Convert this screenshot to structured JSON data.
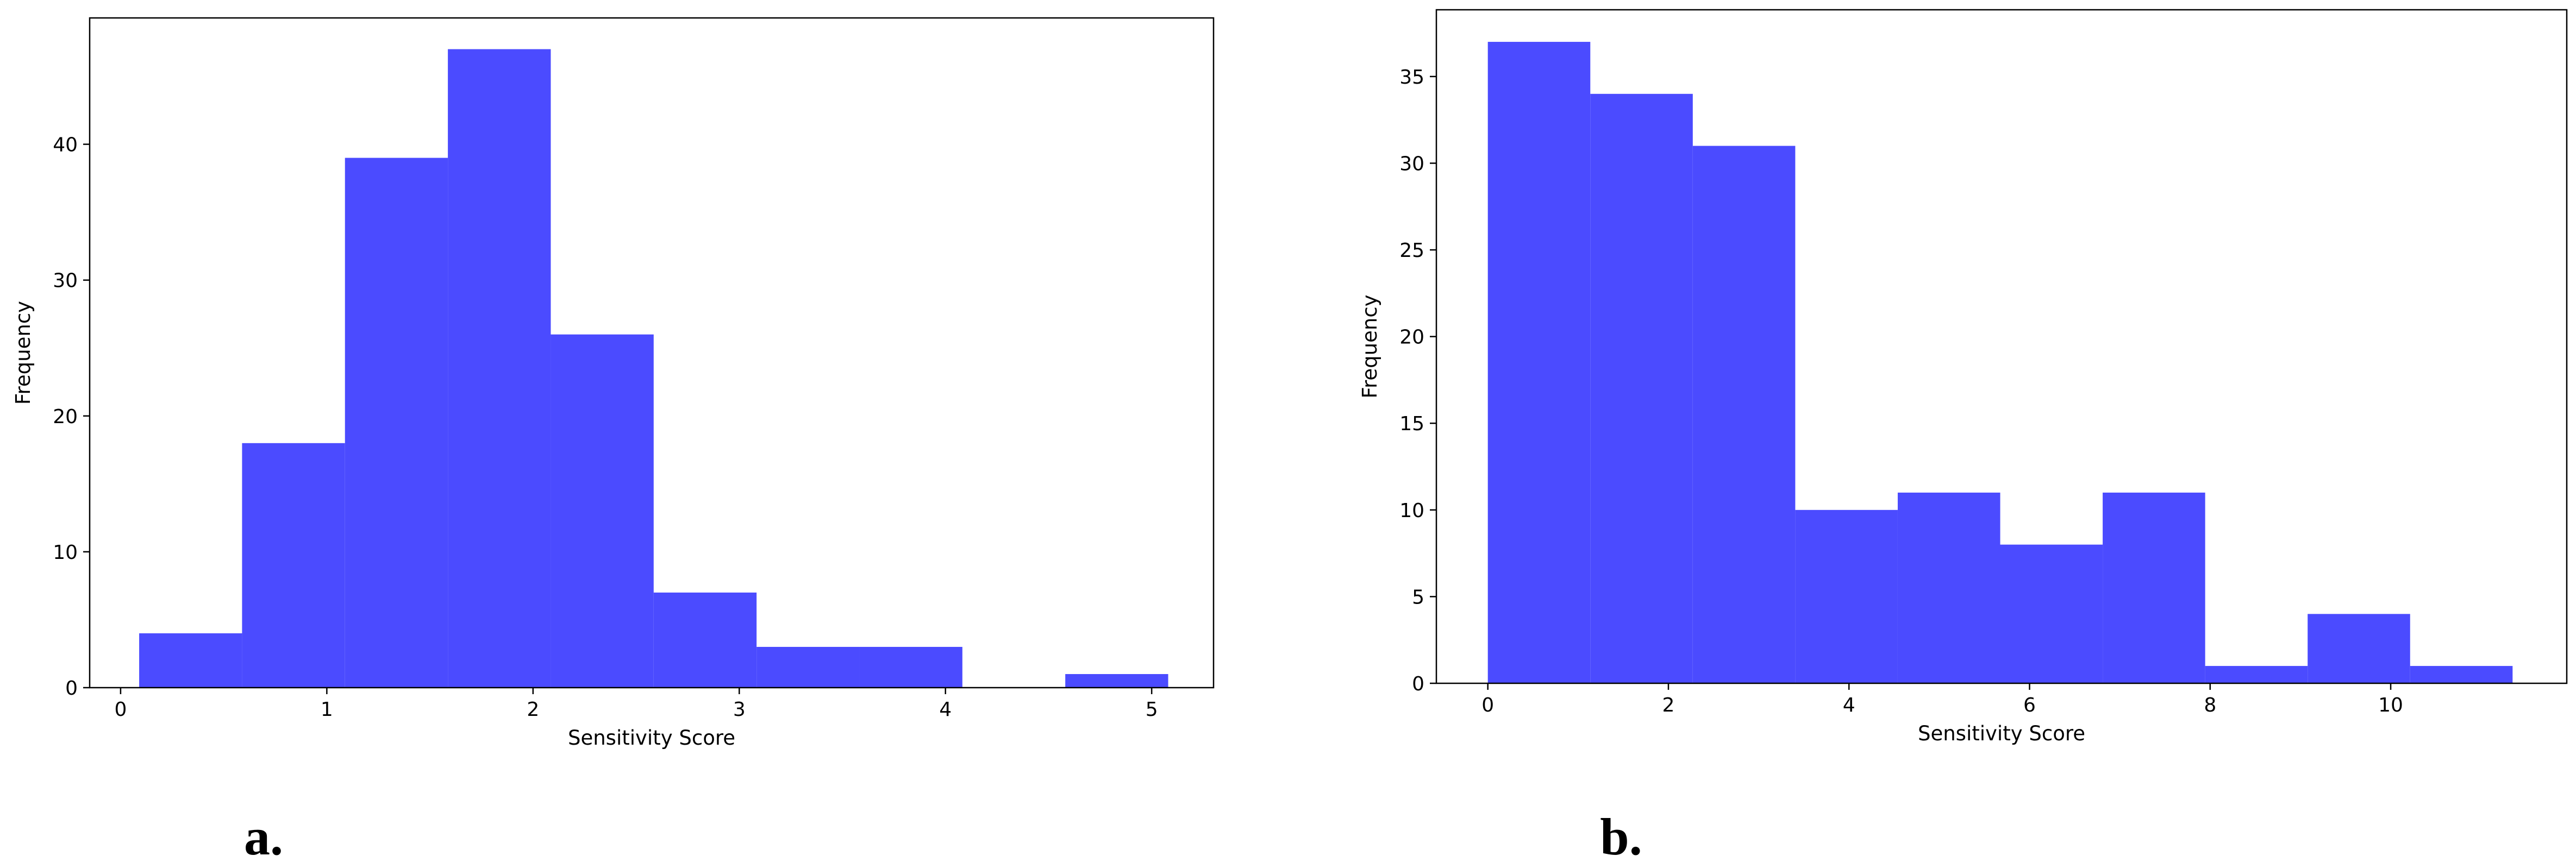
{
  "chart_data": [
    {
      "type": "bar",
      "panel_label": "a.",
      "xlabel": "Sensitivity Score",
      "ylabel": "Frequency",
      "bar_color": "#4b4bff",
      "xlim": [
        -0.15,
        5.3
      ],
      "ylim": [
        0,
        49.3
      ],
      "xticks": [
        0,
        1,
        2,
        3,
        4,
        5
      ],
      "yticks": [
        0,
        10,
        20,
        30,
        40
      ],
      "bins": [
        {
          "x0": 0.09,
          "x1": 0.589,
          "count": 4
        },
        {
          "x0": 0.589,
          "x1": 1.088,
          "count": 18
        },
        {
          "x0": 1.088,
          "x1": 1.587,
          "count": 39
        },
        {
          "x0": 1.587,
          "x1": 2.086,
          "count": 47
        },
        {
          "x0": 2.086,
          "x1": 2.585,
          "count": 26
        },
        {
          "x0": 2.585,
          "x1": 3.084,
          "count": 7
        },
        {
          "x0": 3.084,
          "x1": 3.583,
          "count": 3
        },
        {
          "x0": 3.583,
          "x1": 4.082,
          "count": 3
        },
        {
          "x0": 4.082,
          "x1": 4.581,
          "count": 0
        },
        {
          "x0": 4.581,
          "x1": 5.08,
          "count": 1
        }
      ],
      "grid": false
    },
    {
      "type": "bar",
      "panel_label": "b.",
      "xlabel": "Sensitivity Score",
      "ylabel": "Frequency",
      "bar_color": "#4b4bff",
      "xlim": [
        -0.57,
        11.95
      ],
      "ylim": [
        0,
        38.85
      ],
      "xticks": [
        0,
        2,
        4,
        6,
        8,
        10
      ],
      "yticks": [
        0,
        5,
        10,
        15,
        20,
        25,
        30,
        35
      ],
      "bins": [
        {
          "x0": 0.0,
          "x1": 1.135,
          "count": 37
        },
        {
          "x0": 1.135,
          "x1": 2.27,
          "count": 34
        },
        {
          "x0": 2.27,
          "x1": 3.405,
          "count": 31
        },
        {
          "x0": 3.405,
          "x1": 4.54,
          "count": 10
        },
        {
          "x0": 4.54,
          "x1": 5.675,
          "count": 11
        },
        {
          "x0": 5.675,
          "x1": 6.81,
          "count": 8
        },
        {
          "x0": 6.81,
          "x1": 7.945,
          "count": 11
        },
        {
          "x0": 7.945,
          "x1": 9.08,
          "count": 1
        },
        {
          "x0": 9.08,
          "x1": 10.215,
          "count": 4
        },
        {
          "x0": 10.215,
          "x1": 11.35,
          "count": 1
        }
      ],
      "grid": false
    }
  ]
}
